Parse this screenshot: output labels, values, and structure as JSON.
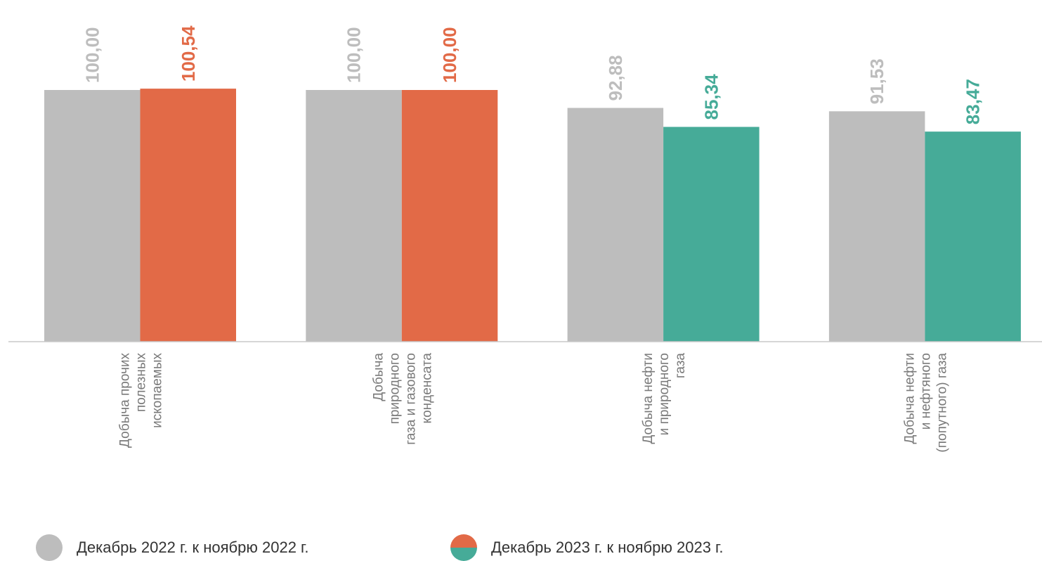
{
  "chart_data": {
    "type": "bar",
    "categories": [
      [
        "Добыча прочих",
        "полезных",
        "ископаемых"
      ],
      [
        "Добыча",
        "природного",
        "газа и газового",
        "конденсата"
      ],
      [
        "Добыча нефти",
        "и природного",
        "газа"
      ],
      [
        "Добыча нефти",
        "и нефтяного",
        "(попутного) газа"
      ]
    ],
    "series": [
      {
        "name": "Декабрь 2022 г. к  ноябрю 2022 г.",
        "values": [
          100.0,
          100.0,
          92.88,
          91.53
        ],
        "labels": [
          "100,00",
          "100,00",
          "92,88",
          "91,53"
        ],
        "colors": [
          "#bdbdbd",
          "#bdbdbd",
          "#bdbdbd",
          "#bdbdbd"
        ],
        "label_colors": [
          "#bdbdbd",
          "#bdbdbd",
          "#bdbdbd",
          "#bdbdbd"
        ]
      },
      {
        "name": "Декабрь 2023 г. к ноябрю 2023 г.",
        "values": [
          100.54,
          100.0,
          85.34,
          83.47
        ],
        "labels": [
          "100,54",
          "100,00",
          "85,34",
          "83,47"
        ],
        "colors": [
          "#e26a47",
          "#e26a47",
          "#46ab98",
          "#46ab98"
        ],
        "label_colors": [
          "#e26a47",
          "#e26a47",
          "#46ab98",
          "#46ab98"
        ]
      }
    ],
    "ylim": [
      0,
      100
    ],
    "grid": false,
    "legend_position": "bottom"
  },
  "legend": {
    "items": [
      {
        "label": "Декабрь 2022 г. к  ноябрю 2022 г.",
        "colors": [
          "#bdbdbd"
        ]
      },
      {
        "label": "Декабрь 2023 г. к ноябрю 2023 г.",
        "colors": [
          "#e26a47",
          "#46ab98"
        ]
      }
    ]
  },
  "colors": {
    "axis": "#c8c8c8",
    "category_text": "#7a7a7a"
  }
}
